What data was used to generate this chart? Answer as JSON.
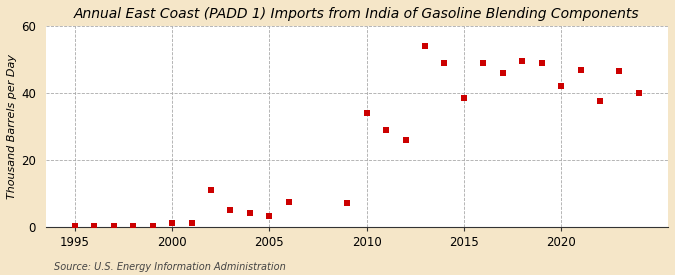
{
  "title": "Annual East Coast (PADD 1) Imports from India of Gasoline Blending Components",
  "ylabel": "Thousand Barrels per Day",
  "source": "Source: U.S. Energy Information Administration",
  "background_color": "#f5e6c8",
  "plot_background": "#ffffff",
  "marker_color": "#cc0000",
  "years": [
    1995,
    1996,
    1997,
    1998,
    1999,
    2000,
    2001,
    2002,
    2003,
    2004,
    2005,
    2006,
    2009,
    2010,
    2011,
    2012,
    2013,
    2014,
    2015,
    2016,
    2017,
    2018,
    2019,
    2020,
    2021,
    2022,
    2023,
    2024
  ],
  "values": [
    0.1,
    0.1,
    0.1,
    0.1,
    0.1,
    1.0,
    1.2,
    11.0,
    5.0,
    4.0,
    3.2,
    7.5,
    7.0,
    34.0,
    29.0,
    26.0,
    54.0,
    49.0,
    38.5,
    49.0,
    46.0,
    49.5,
    49.0,
    42.0,
    47.0,
    37.5,
    46.5,
    40.0
  ],
  "xlim": [
    1993.5,
    2025.5
  ],
  "ylim": [
    0,
    60
  ],
  "yticks": [
    0,
    20,
    40,
    60
  ],
  "xticks": [
    1995,
    2000,
    2005,
    2010,
    2015,
    2020
  ],
  "grid_color": "#aaaaaa",
  "title_fontsize": 10,
  "label_fontsize": 8,
  "tick_fontsize": 8.5,
  "source_fontsize": 7
}
